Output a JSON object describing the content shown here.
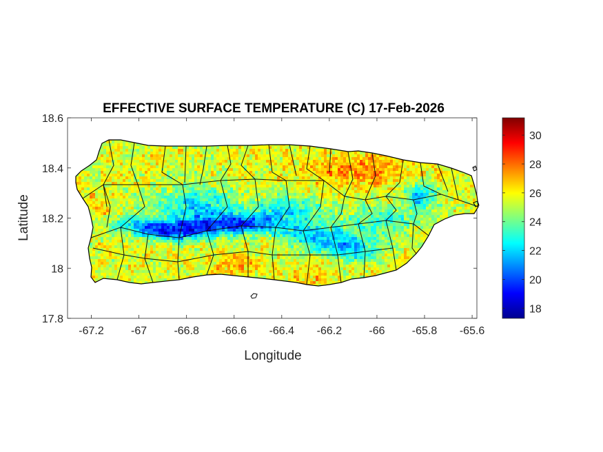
{
  "chart_data": {
    "type": "heatmap",
    "title": "EFFECTIVE SURFACE TEMPERATURE (C) 17-Feb-2026",
    "xlabel": "Longitude",
    "ylabel": "Latitude",
    "xlim": [
      -67.3,
      -65.58
    ],
    "ylim": [
      17.8,
      18.6
    ],
    "x_ticks": [
      -67.2,
      -67,
      -66.8,
      -66.6,
      -66.4,
      -66.2,
      -66,
      -65.8,
      -65.6
    ],
    "x_tick_labels": [
      "-67.2",
      "-67",
      "-66.8",
      "-66.6",
      "-66.4",
      "-66.2",
      "-66",
      "-65.8",
      "-65.6"
    ],
    "y_ticks": [
      17.8,
      18,
      18.2,
      18.4,
      18.6
    ],
    "y_tick_labels": [
      "17.8",
      "18",
      "18.2",
      "18.4",
      "18.6"
    ],
    "colorbar": {
      "colormap": "jet",
      "min": 17.3,
      "max": 31.2,
      "ticks": [
        18,
        20,
        22,
        24,
        26,
        28,
        30
      ],
      "tick_labels": [
        "18",
        "20",
        "22",
        "24",
        "26",
        "28",
        "30"
      ]
    },
    "field_summary": {
      "coastal_lowlands_C": [
        24,
        27
      ],
      "northeast_peak_C": 28,
      "central_cordillera_min_C": 18,
      "eastern_uplands_C": 21
    }
  }
}
